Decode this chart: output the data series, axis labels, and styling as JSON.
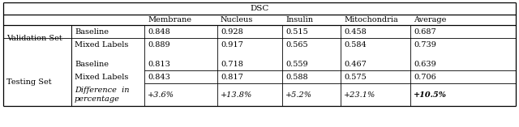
{
  "title": "DSC",
  "headers": [
    "Membrane",
    "Nucleus",
    "Insulin",
    "Mitochondria",
    "Average"
  ],
  "val_baseline": [
    "0.848",
    "0.928",
    "0.515",
    "0.458",
    "0.687"
  ],
  "val_mixed": [
    "0.889",
    "0.917",
    "0.565",
    "0.584",
    "0.739"
  ],
  "test_baseline": [
    "0.813",
    "0.718",
    "0.559",
    "0.467",
    "0.639"
  ],
  "test_mixed": [
    "0.843",
    "0.817",
    "0.588",
    "0.575",
    "0.706"
  ],
  "test_diff": [
    "+3.6%",
    "+13.8%",
    "+5.2%",
    "+23.1%",
    "+10.5%"
  ],
  "bg_color": "#ffffff",
  "font_size": 7.0,
  "title_font_size": 7.5
}
